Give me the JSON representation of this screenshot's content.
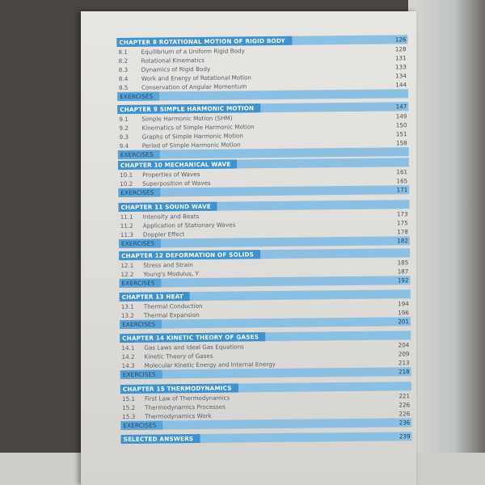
{
  "colors": {
    "bar_dark": "#3d92cf",
    "bar_light": "#8cc0e2"
  },
  "chapters": [
    {
      "title": "CHAPTER 8 ROTATIONAL MOTION OF RIGID BODY",
      "page": "126",
      "items": [
        [
          "8.1",
          "Equilibrium of a Uniform Rigid Body",
          "128"
        ],
        [
          "8.2",
          "Rotational Kinematics",
          "131"
        ],
        [
          "8.3",
          "Dynamics of Rigid Body",
          "133"
        ],
        [
          "8.4",
          "Work and Energy of Rotational Motion",
          "134"
        ],
        [
          "8.5",
          "Conservation of Angular Momentum",
          "144"
        ]
      ],
      "exercises": "EXERCISES",
      "exercises_page": ""
    },
    {
      "title": "CHAPTER 9 SIMPLE HARMONIC MOTION",
      "page": "147",
      "items": [
        [
          "9.1",
          "Simple Harmonic Motion (SHM)",
          "149"
        ],
        [
          "9.2",
          "Kinematics of Simple Harmonic Motion",
          "150"
        ],
        [
          "9.3",
          "Graphs of Simple Harmonic Motion",
          "151"
        ],
        [
          "9.4",
          "Period of Simple Harmonic Motion",
          "158"
        ]
      ],
      "exercises": "EXERCISES",
      "exercises_page": ""
    },
    {
      "title": "CHAPTER 10 MECHANICAL WAVE",
      "page": "",
      "items": [
        [
          "10.1",
          "Properties of Waves",
          "161"
        ],
        [
          "10.2",
          "Superposition of Waves",
          "165"
        ]
      ],
      "exercises": "EXERCISES",
      "exercises_page": "171"
    },
    {
      "title": "CHAPTER 11 SOUND WAVE",
      "page": "",
      "items": [
        [
          "11.1",
          "Intensity and Beats",
          "173"
        ],
        [
          "11.2",
          "Application of Stationary Waves",
          "175"
        ],
        [
          "11.3",
          "Doppler Effect",
          "178"
        ]
      ],
      "exercises": "EXERCISES",
      "exercises_page": "182"
    },
    {
      "title": "CHAPTER 12 DEFORMATION OF SOLIDS",
      "page": "",
      "items": [
        [
          "12.1",
          "Stress and Strain",
          "185"
        ],
        [
          "12.2",
          "Young's Modulus, Y",
          "187"
        ]
      ],
      "exercises": "EXERCISES",
      "exercises_page": "192"
    },
    {
      "title": "CHAPTER 13 HEAT",
      "page": "",
      "items": [
        [
          "13.1",
          "Thermal Conduction",
          "194"
        ],
        [
          "13.2",
          "Thermal Expansion",
          "196"
        ]
      ],
      "exercises": "EXERCISES",
      "exercises_page": "201"
    },
    {
      "title": "CHAPTER 14 KINETIC THEORY OF GASES",
      "page": "",
      "items": [
        [
          "14.1",
          "Gas Laws and Ideal Gas Equations",
          "204"
        ],
        [
          "14.2",
          "Kinetic Theory of Gases",
          "209"
        ],
        [
          "14.3",
          "Molecular Kinetic Energy and Internal Energy",
          "213"
        ]
      ],
      "exercises": "EXERCISES",
      "exercises_page": "218"
    },
    {
      "title": "CHAPTER 15 THERMODYNAMICS",
      "page": "",
      "items": [
        [
          "15.1",
          "First Law of Thermodynamics",
          "221"
        ],
        [
          "15.2",
          "Thermodynamics Processes",
          "226"
        ],
        [
          "15.3",
          "Thermodynamics Work",
          "226"
        ]
      ],
      "exercises": "EXERCISES",
      "exercises_page": "236"
    }
  ],
  "selected_answers": {
    "title": "SELECTED ANSWERS",
    "page": "239"
  }
}
